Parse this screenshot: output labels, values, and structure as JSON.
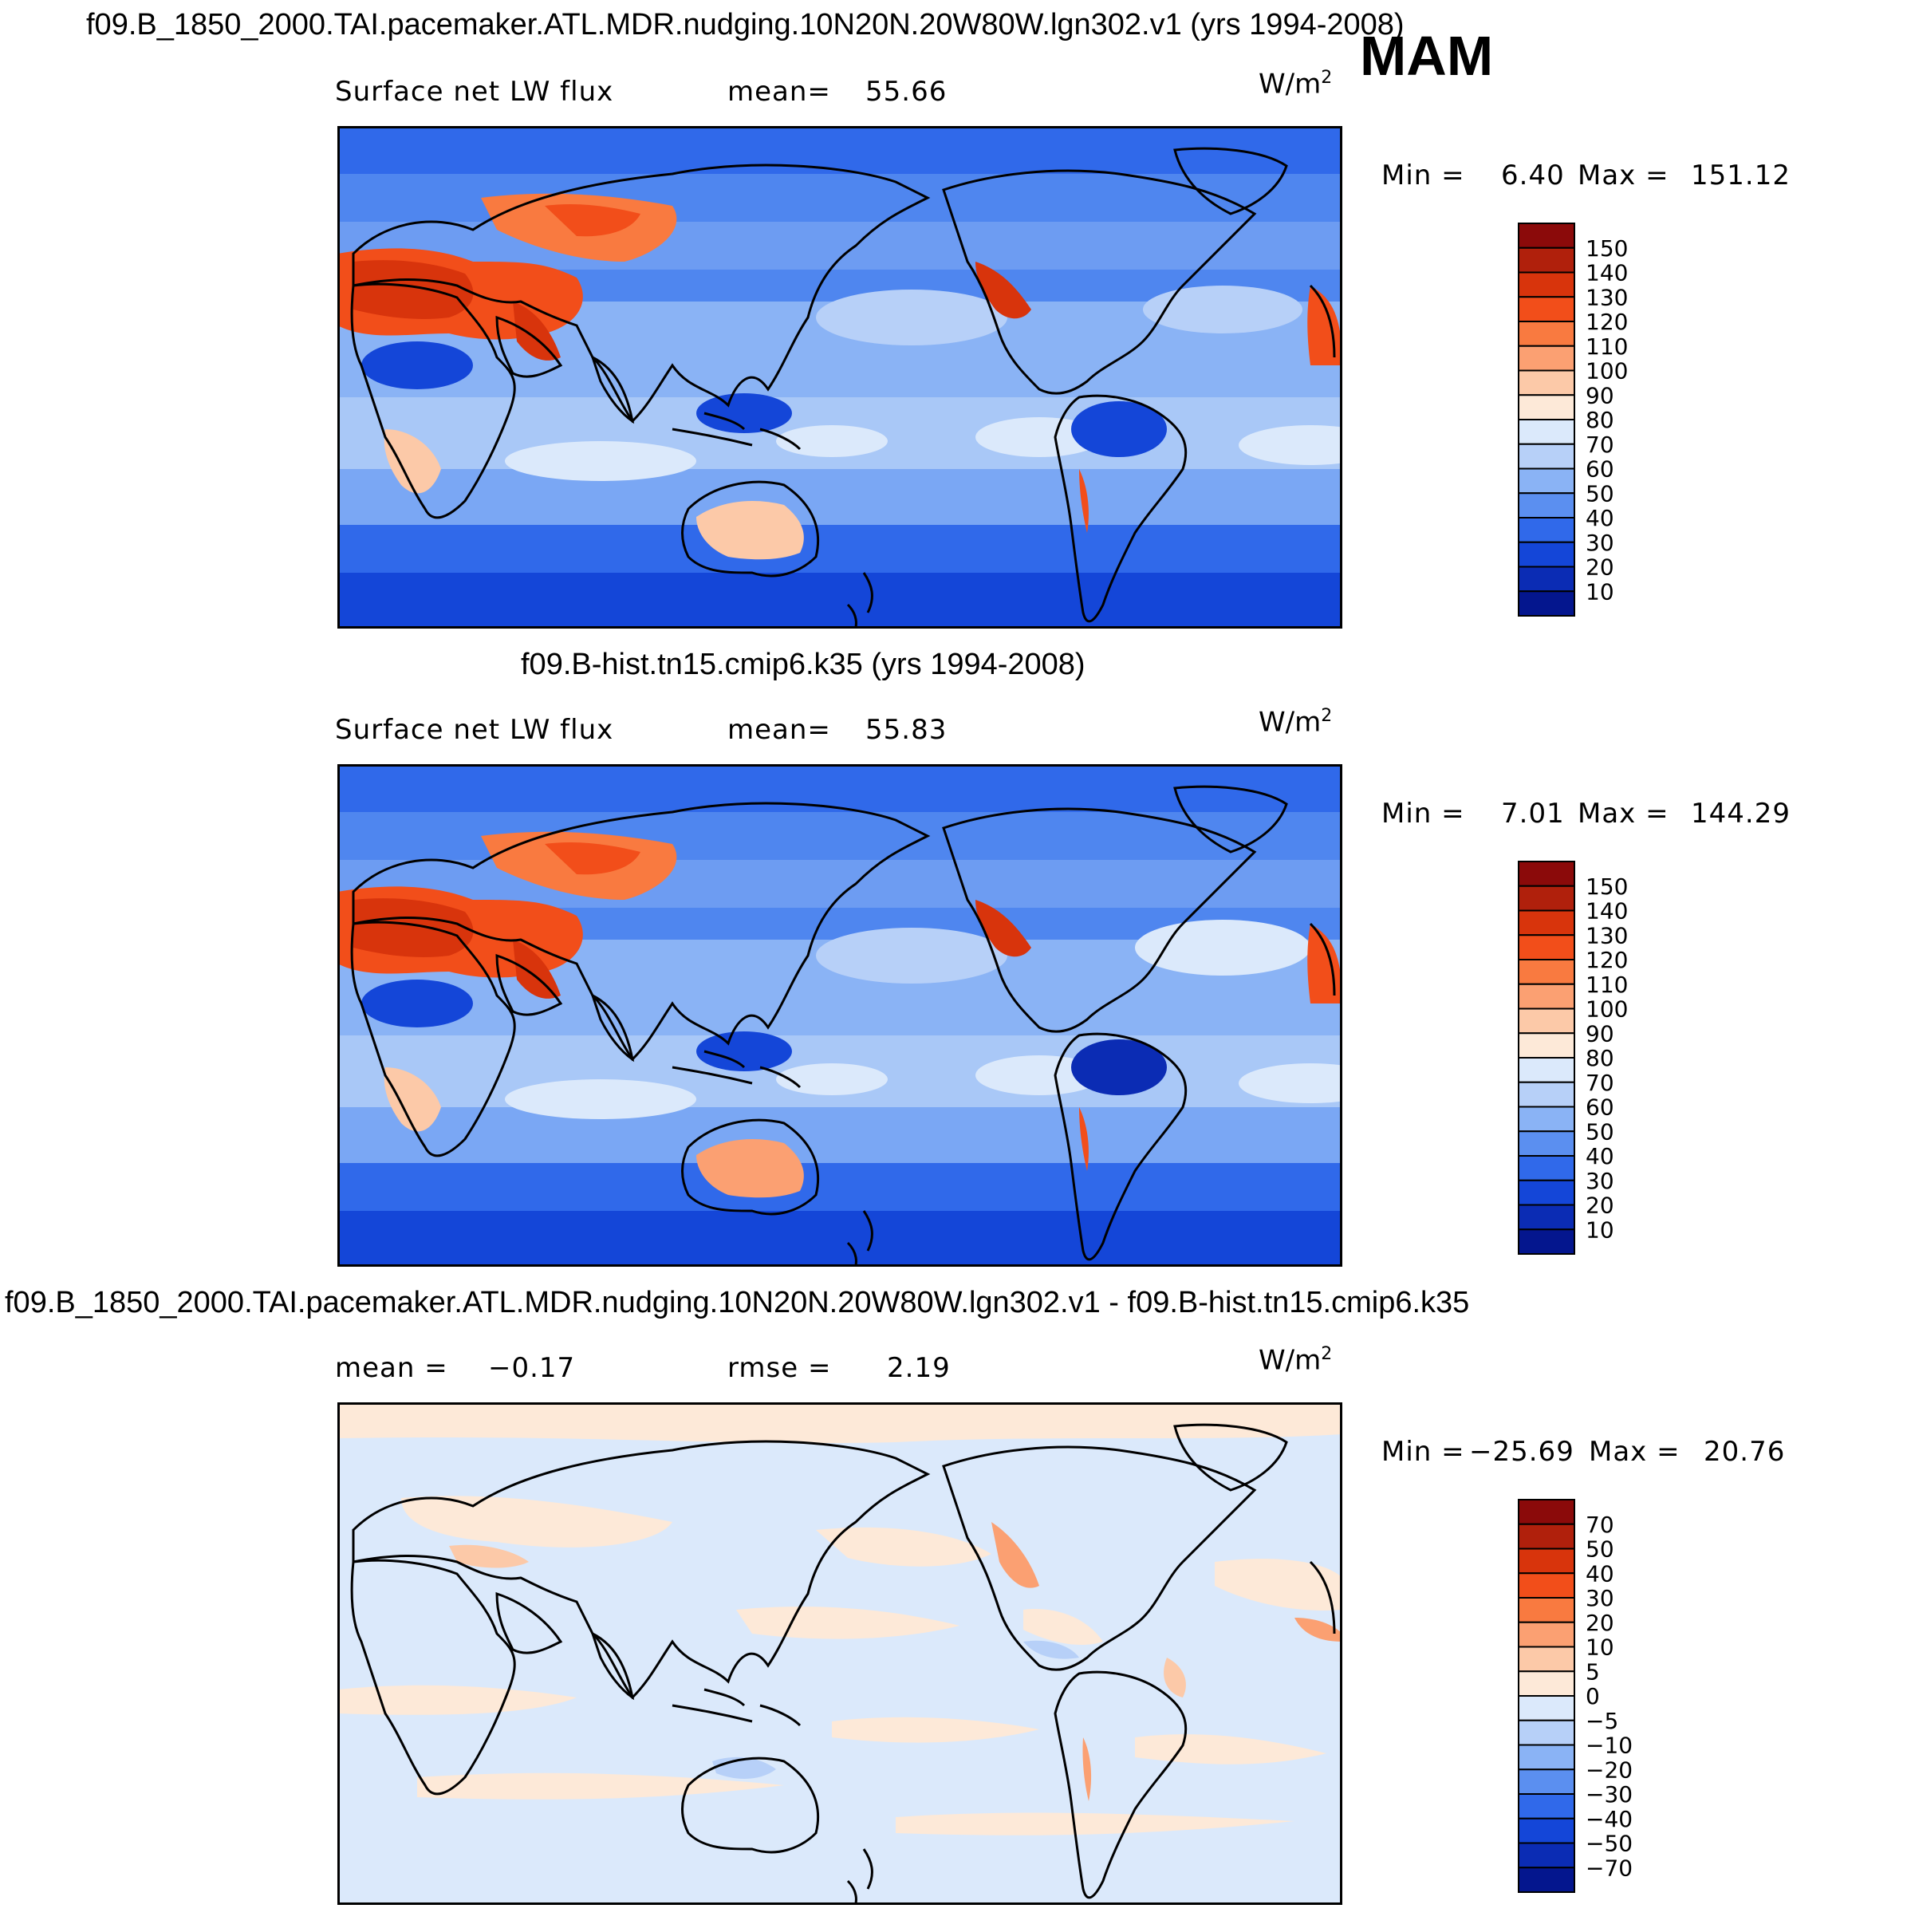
{
  "season": "MAM",
  "units_label": "W/m",
  "units_exp": "2",
  "panels": [
    {
      "title": "f09.B_1850_2000.TAI.pacemaker.ATL.MDR.nudging.10N20N.20W80W.lgn302.v1 (yrs 1994-2008)",
      "var_label": "Surface net LW flux",
      "stat_label": "mean=",
      "stat_value": "55.66",
      "min_label": "Min =",
      "min_value": "6.40",
      "max_label": "Max =",
      "max_value": "151.12"
    },
    {
      "title": "f09.B-hist.tn15.cmip6.k35 (yrs 1994-2008)",
      "var_label": "Surface net LW flux",
      "stat_label": "mean=",
      "stat_value": "55.83",
      "min_label": "Min =",
      "min_value": "7.01",
      "max_label": "Max =",
      "max_value": "144.29"
    },
    {
      "title": "f09.B_1850_2000.TAI.pacemaker.ATL.MDR.nudging.10N20N.20W80W.lgn302.v1 - f09.B-hist.tn15.cmip6.k35",
      "mean_label": "mean =",
      "mean_value": "−0.17",
      "rmse_label": "rmse =",
      "rmse_value": "2.19",
      "min_label": "Min =",
      "min_value": "−25.69",
      "max_label": "Max =",
      "max_value": "20.76"
    }
  ],
  "colorbars": {
    "abs": {
      "labels": [
        "150",
        "140",
        "130",
        "120",
        "110",
        "100",
        "90",
        "80",
        "70",
        "60",
        "50",
        "40",
        "30",
        "20",
        "10"
      ],
      "colors": [
        "#8b0a0a",
        "#b0200c",
        "#d8340c",
        "#f24e1a",
        "#f97a40",
        "#fba072",
        "#fcc9a8",
        "#fde9d8",
        "#dbe9fb",
        "#b7d0f8",
        "#8ab3f5",
        "#5b8ff0",
        "#3069ea",
        "#1446d8",
        "#0b2cb4",
        "#04168e"
      ]
    },
    "diff": {
      "labels": [
        "70",
        "50",
        "40",
        "30",
        "20",
        "10",
        "5",
        "0",
        "−5",
        "−10",
        "−20",
        "−30",
        "−40",
        "−50",
        "−70"
      ],
      "colors": [
        "#8b0a0a",
        "#b0200c",
        "#d8340c",
        "#f24e1a",
        "#f97a40",
        "#fba072",
        "#fcc9a8",
        "#fde9d8",
        "#dbe9fb",
        "#b7d0f8",
        "#8ab3f5",
        "#5b8ff0",
        "#3069ea",
        "#1446d8",
        "#0b2cb4",
        "#04168e"
      ]
    }
  }
}
